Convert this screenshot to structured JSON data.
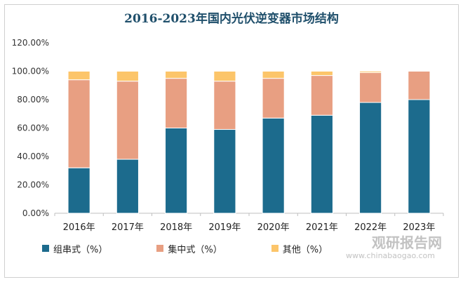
{
  "chart_data": {
    "type": "bar",
    "stacked": true,
    "title": "2016-2023年国内光伏逆变器市场结构",
    "categories": [
      "2016年",
      "2017年",
      "2018年",
      "2019年",
      "2020年",
      "2021年",
      "2022年",
      "2023年"
    ],
    "series": [
      {
        "name": "组串式（%）",
        "color": "#1c6b8d",
        "values": [
          32,
          38,
          60,
          59,
          67,
          69,
          78,
          80
        ]
      },
      {
        "name": "集中式（%）",
        "color": "#e89f82",
        "values": [
          62,
          55,
          35,
          34,
          28,
          28,
          21,
          20
        ]
      },
      {
        "name": "其他（%）",
        "color": "#fcc56a",
        "values": [
          6,
          7,
          5,
          7,
          5,
          3,
          1,
          0
        ]
      }
    ],
    "ylim": [
      0,
      120
    ],
    "yticks": [
      "0.00%",
      "20.00%",
      "40.00%",
      "60.00%",
      "80.00%",
      "100.00%",
      "120.00%"
    ],
    "grid": false,
    "legend_position": "bottom"
  },
  "watermark": {
    "brand": "观研报告网",
    "url": "www.chinabaogao.com"
  }
}
